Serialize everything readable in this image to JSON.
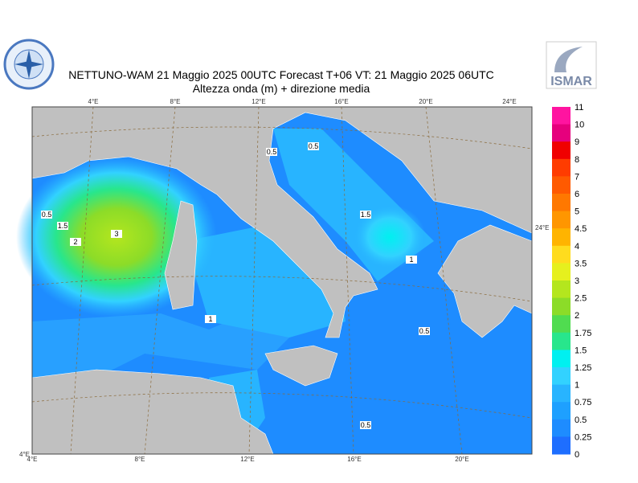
{
  "header": {
    "title": "NETTUNO-WAM  21   Maggio  2025 00UTC Forecast T+06 VT: 21   Maggio  2025 06UTC",
    "subtitle": "Altezza onda (m) + direzione media",
    "logo_right": "ISMAR"
  },
  "map": {
    "top_lon_labels": [
      "4°E",
      "8°E",
      "12°E",
      "16°E",
      "20°E",
      "24°E"
    ],
    "bottom_lon_labels": [
      "4°E",
      "8°E",
      "12°E",
      "16°E",
      "20°E"
    ],
    "corner_label": "4°E",
    "right_label": "24°E",
    "contour_labels": [
      "0.5",
      "1.5",
      "2",
      "3",
      "1",
      "0.5",
      "0.5",
      "1.5",
      "1",
      "0.5",
      "0.5"
    ]
  },
  "colorbar": {
    "labels": [
      "11",
      "10",
      "9",
      "8",
      "7",
      "6",
      "5",
      "4.5",
      "4",
      "3.5",
      "3",
      "2.5",
      "2",
      "1.75",
      "1.5",
      "1.25",
      "1",
      "0.75",
      "0.5",
      "0.25",
      "0"
    ],
    "colors": [
      "#ff14a0",
      "#e6007d",
      "#f00000",
      "#ff3c00",
      "#ff5a00",
      "#ff7800",
      "#ff9600",
      "#ffb400",
      "#ffdc1e",
      "#e6f01e",
      "#b4e61e",
      "#8cdc28",
      "#50dc50",
      "#28e68c",
      "#00f0f0",
      "#32d2ff",
      "#28b4ff",
      "#1ea0ff",
      "#1e8cff",
      "#1e6eff"
    ]
  }
}
